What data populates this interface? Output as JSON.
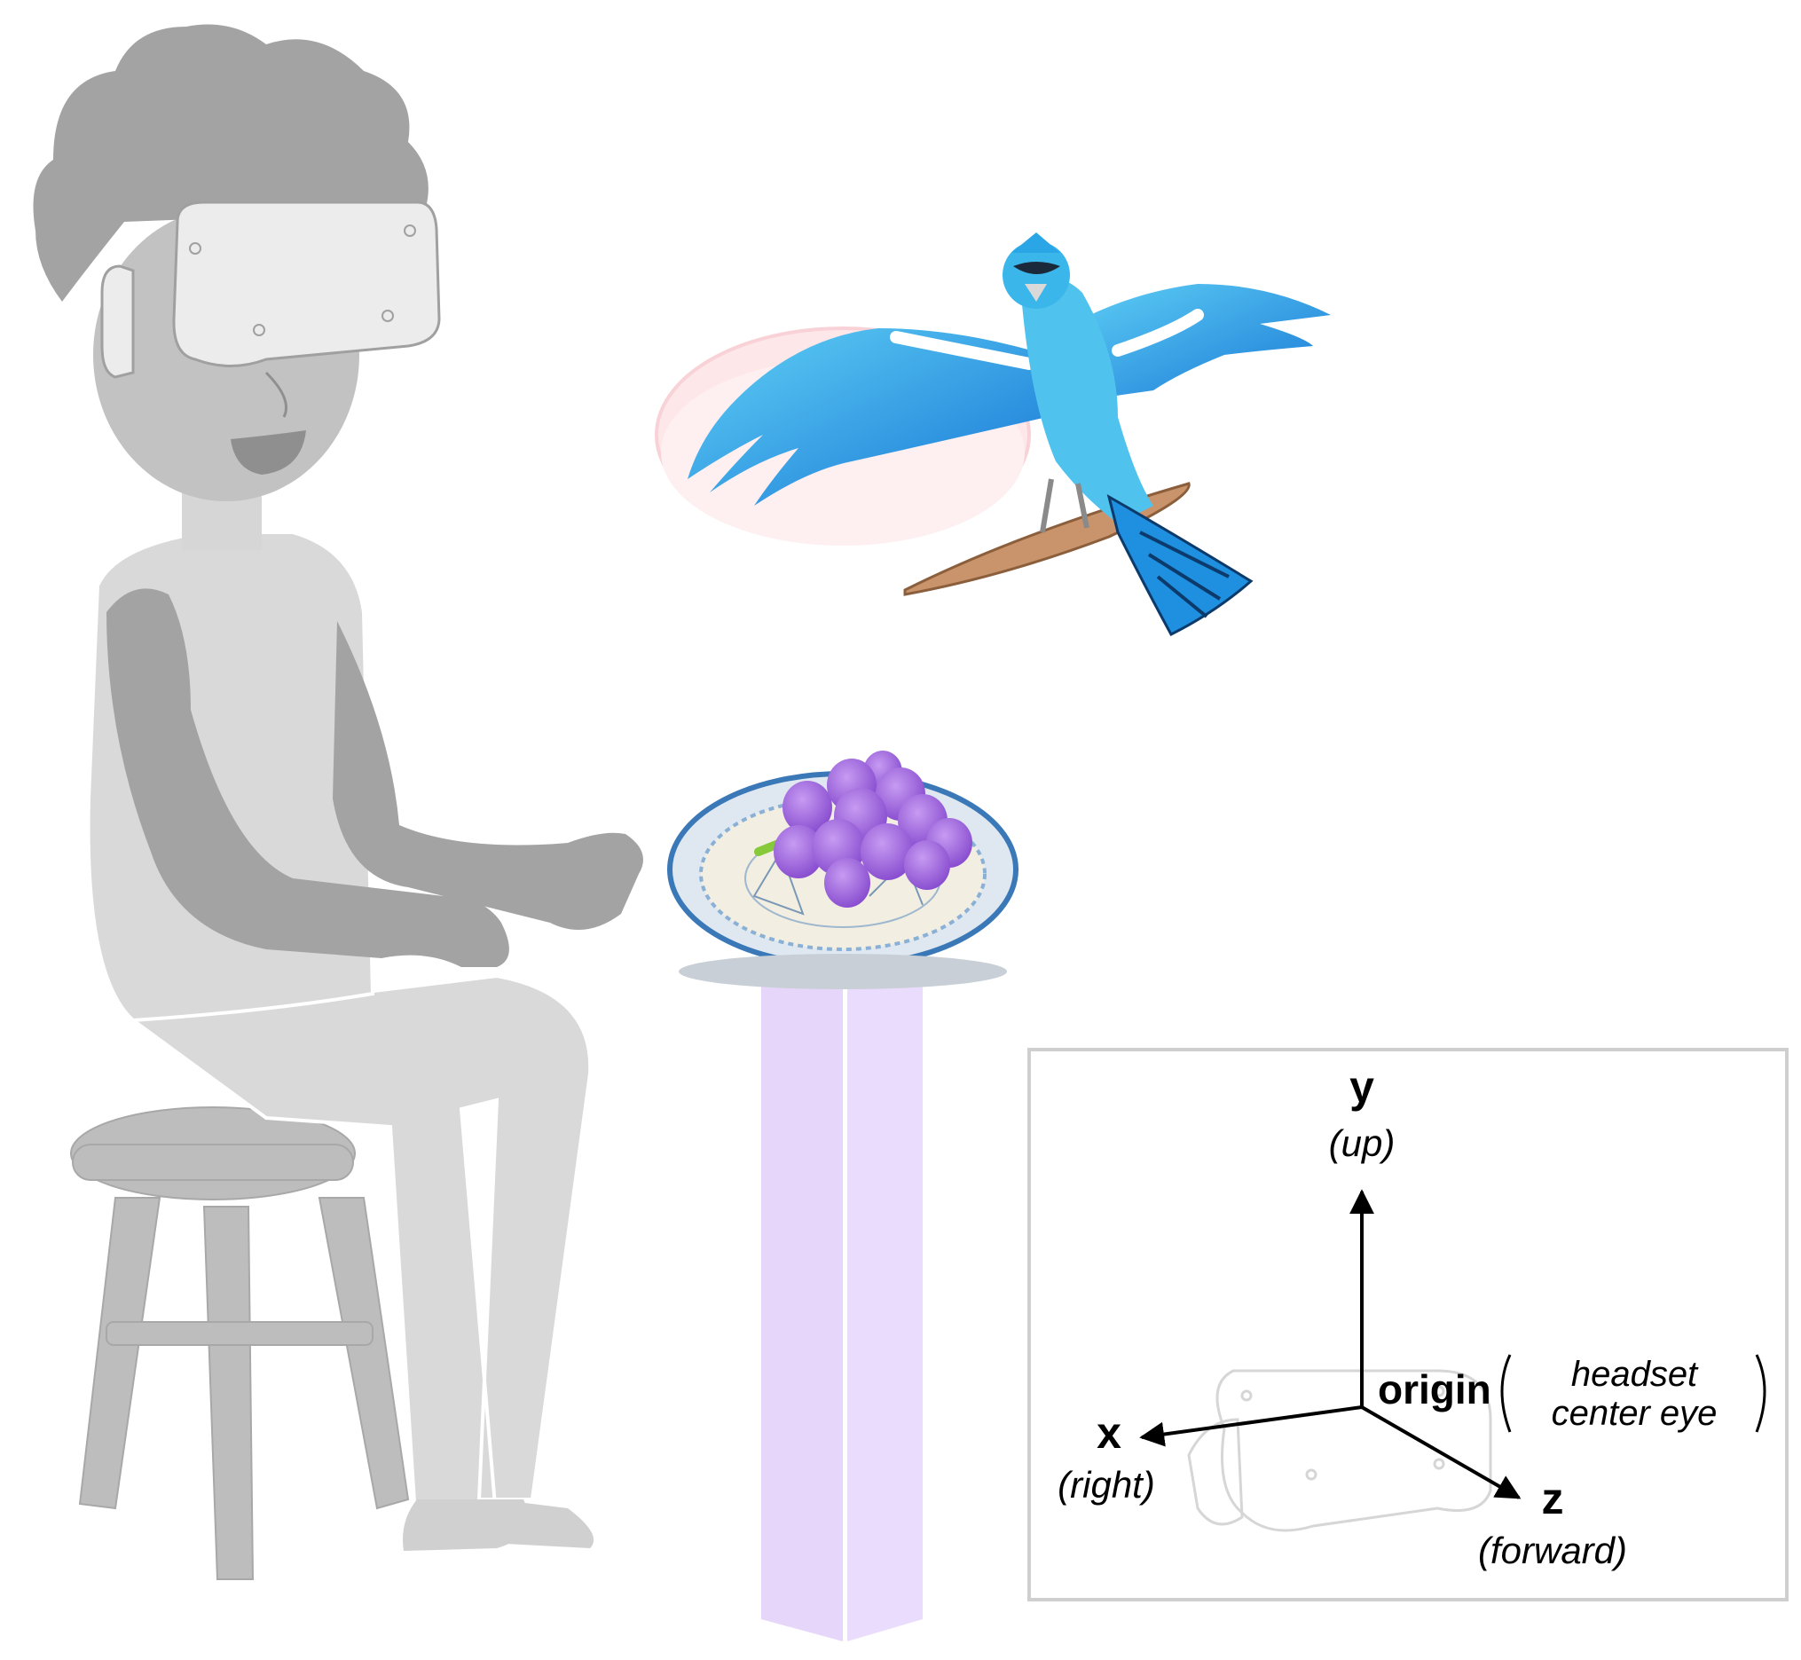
{
  "axes": {
    "y": {
      "label": "y",
      "direction": "(up)"
    },
    "x": {
      "label": "x",
      "direction": "(right)"
    },
    "z": {
      "label": "z",
      "direction": "(forward)"
    },
    "origin": {
      "label": "origin",
      "detail_line1": "headset",
      "detail_line2": "center eye"
    }
  },
  "colors": {
    "person": "#d9d9d9",
    "person_dark": "#a3a3a3",
    "pillar": "#e9dcfb",
    "grapes": "#a26bdc",
    "bird": "#2aa6e6",
    "disc": "#fde7e9",
    "frame_border": "#cfcfcf"
  },
  "objects": {
    "person": "seated-person-with-vr-headset",
    "bird": "blue-jay",
    "plate": "plate-with-grapes",
    "pedestal": "purple-pedestal"
  }
}
